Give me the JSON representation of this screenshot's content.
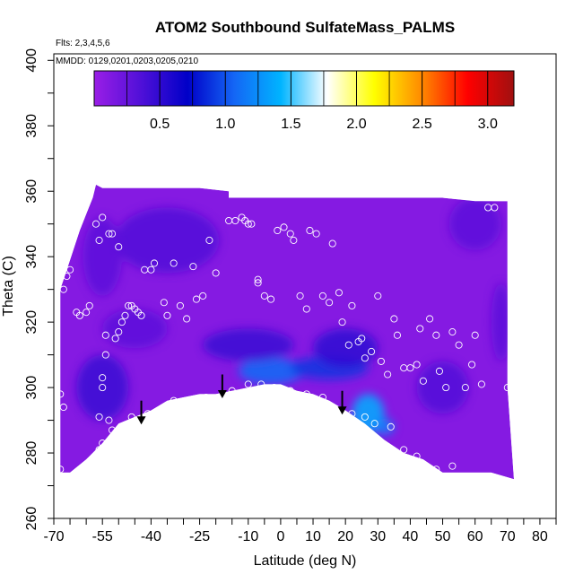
{
  "chart_data": {
    "type": "heatmap",
    "title": "ATOM2 Southbound SulfateMass_PALMS",
    "flights_note": "Flts: 2,3,4,5,6",
    "dates_note": "MMDD: 0129,0201,0203,0205,0210",
    "xlabel": "Latitude (deg N)",
    "ylabel": "Theta (C)",
    "xlim": [
      -70,
      85
    ],
    "ylim": [
      260,
      402
    ],
    "x_ticks": [
      -70,
      -55,
      -40,
      -25,
      -10,
      0,
      10,
      20,
      30,
      40,
      50,
      60,
      70,
      80
    ],
    "y_ticks": [
      260,
      280,
      300,
      320,
      340,
      360,
      380,
      400
    ],
    "colorbar": {
      "range": [
        0,
        3.2
      ],
      "ticks": [
        0.5,
        1.0,
        1.5,
        2.0,
        2.5,
        3.0
      ],
      "tick_labels": [
        "0.5",
        "1.0",
        "1.5",
        "2.0",
        "2.5",
        "3.0"
      ],
      "colors": [
        "#9a1ee6",
        "#5010d8",
        "#0000c8",
        "#1466f5",
        "#00b4ff",
        "#ffffff",
        "#ffff00",
        "#ff8c00",
        "#ff0000",
        "#a01010"
      ]
    },
    "field": {
      "upper_boundary": [
        [
          -68,
          330
        ],
        [
          -66,
          336
        ],
        [
          -64,
          342
        ],
        [
          -62,
          348
        ],
        [
          -60,
          353
        ],
        [
          -58,
          358
        ],
        [
          -57,
          362
        ],
        [
          -55,
          361
        ],
        [
          -45,
          361
        ],
        [
          -35,
          361
        ],
        [
          -25,
          361
        ],
        [
          -16,
          360
        ],
        [
          -16,
          358
        ],
        [
          0,
          358
        ],
        [
          15,
          358
        ],
        [
          30,
          358
        ],
        [
          40,
          358
        ],
        [
          50,
          358
        ],
        [
          60,
          357
        ],
        [
          70,
          357
        ],
        [
          70,
          300
        ]
      ],
      "lower_boundary": [
        [
          70,
          300
        ],
        [
          72,
          272
        ],
        [
          65,
          274
        ],
        [
          55,
          274
        ],
        [
          50,
          274
        ],
        [
          44,
          278
        ],
        [
          38,
          280
        ],
        [
          32,
          284
        ],
        [
          26,
          289
        ],
        [
          20,
          293
        ],
        [
          15,
          296
        ],
        [
          10,
          298
        ],
        [
          5,
          299
        ],
        [
          0,
          301
        ],
        [
          -5,
          301
        ],
        [
          -10,
          300
        ],
        [
          -15,
          299
        ],
        [
          -20,
          298
        ],
        [
          -25,
          298
        ],
        [
          -30,
          297
        ],
        [
          -35,
          296
        ],
        [
          -40,
          293
        ],
        [
          -45,
          291
        ],
        [
          -50,
          289
        ],
        [
          -55,
          283
        ],
        [
          -60,
          278
        ],
        [
          -65,
          274
        ],
        [
          -68,
          274
        ]
      ],
      "base_value": 0.1,
      "notes": "purple background (~0.1) with blue enhancement bands (~0.4-1.3)"
    },
    "blobs": [
      {
        "x": -3,
        "y": 305,
        "rx": 10,
        "ry": 4,
        "value": 1.1
      },
      {
        "x": 15,
        "y": 306,
        "rx": 12,
        "ry": 3.5,
        "value": 0.9
      },
      {
        "x": 27,
        "y": 292,
        "rx": 5,
        "ry": 6,
        "value": 1.4
      },
      {
        "x": 32,
        "y": 288,
        "rx": 3,
        "ry": 2.5,
        "value": 1.2
      },
      {
        "x": -10,
        "y": 313,
        "rx": 14,
        "ry": 5,
        "value": 0.45
      },
      {
        "x": 20,
        "y": 312,
        "rx": 10,
        "ry": 6,
        "value": 0.5
      },
      {
        "x": 50,
        "y": 300,
        "rx": 8,
        "ry": 8,
        "value": 0.35
      },
      {
        "x": -55,
        "y": 300,
        "rx": 8,
        "ry": 10,
        "value": 0.45
      },
      {
        "x": -45,
        "y": 318,
        "rx": 10,
        "ry": 6,
        "value": 0.3
      },
      {
        "x": -35,
        "y": 345,
        "rx": 16,
        "ry": 10,
        "value": 0.35
      },
      {
        "x": -55,
        "y": 340,
        "rx": 6,
        "ry": 12,
        "value": 0.3
      },
      {
        "x": 60,
        "y": 350,
        "rx": 8,
        "ry": 8,
        "value": 0.3
      },
      {
        "x": 68,
        "y": 320,
        "rx": 3,
        "ry": 12,
        "value": 0.3
      }
    ],
    "arrows": [
      {
        "x": -43,
        "y_start": 296,
        "y_end": 289
      },
      {
        "x": -18,
        "y_start": 304,
        "y_end": 297
      },
      {
        "x": 19,
        "y_start": 299,
        "y_end": 292
      }
    ],
    "points": [
      [
        -68,
        275
      ],
      [
        -67,
        294
      ],
      [
        -68,
        298
      ],
      [
        -67,
        330
      ],
      [
        -66,
        334
      ],
      [
        -65,
        336
      ],
      [
        -63,
        323
      ],
      [
        -62,
        322
      ],
      [
        -60,
        323
      ],
      [
        -59,
        325
      ],
      [
        -57,
        350
      ],
      [
        -56,
        345
      ],
      [
        -55,
        352
      ],
      [
        -53,
        347
      ],
      [
        -52,
        347
      ],
      [
        -50,
        343
      ],
      [
        -54,
        316
      ],
      [
        -54,
        310
      ],
      [
        -55,
        303
      ],
      [
        -55,
        300
      ],
      [
        -56,
        291
      ],
      [
        -56,
        281
      ],
      [
        -55,
        283
      ],
      [
        -53,
        290
      ],
      [
        -52,
        287
      ],
      [
        -51,
        315
      ],
      [
        -50,
        317
      ],
      [
        -49,
        320
      ],
      [
        -48,
        322
      ],
      [
        -47,
        325
      ],
      [
        -46,
        325
      ],
      [
        -45,
        324
      ],
      [
        -44,
        323
      ],
      [
        -43,
        322
      ],
      [
        -42,
        336
      ],
      [
        -40,
        336
      ],
      [
        -39,
        338
      ],
      [
        -36,
        326
      ],
      [
        -35,
        322
      ],
      [
        -33,
        338
      ],
      [
        -31,
        325
      ],
      [
        -29,
        321
      ],
      [
        -27,
        337
      ],
      [
        -26,
        327
      ],
      [
        -24,
        328
      ],
      [
        -22,
        345
      ],
      [
        -20,
        335
      ],
      [
        -16,
        351
      ],
      [
        -14,
        351
      ],
      [
        -12,
        352
      ],
      [
        -11,
        351
      ],
      [
        -10,
        350
      ],
      [
        -9,
        350
      ],
      [
        -7,
        333
      ],
      [
        -7,
        332
      ],
      [
        -5,
        328
      ],
      [
        -3,
        327
      ],
      [
        -1,
        348
      ],
      [
        1,
        349
      ],
      [
        3,
        347
      ],
      [
        4,
        345
      ],
      [
        6,
        328
      ],
      [
        8,
        324
      ],
      [
        9,
        348
      ],
      [
        11,
        347
      ],
      [
        13,
        328
      ],
      [
        15,
        326
      ],
      [
        16,
        344
      ],
      [
        18,
        329
      ],
      [
        19,
        320
      ],
      [
        21,
        313
      ],
      [
        22,
        325
      ],
      [
        24,
        314
      ],
      [
        25,
        315
      ],
      [
        26,
        309
      ],
      [
        28,
        311
      ],
      [
        30,
        328
      ],
      [
        31,
        308
      ],
      [
        33,
        304
      ],
      [
        35,
        321
      ],
      [
        36,
        316
      ],
      [
        38,
        306
      ],
      [
        40,
        306
      ],
      [
        42,
        307
      ],
      [
        43,
        318
      ],
      [
        44,
        302
      ],
      [
        46,
        321
      ],
      [
        48,
        316
      ],
      [
        49,
        305
      ],
      [
        51,
        300
      ],
      [
        53,
        317
      ],
      [
        55,
        313
      ],
      [
        57,
        300
      ],
      [
        59,
        307
      ],
      [
        60,
        316
      ],
      [
        62,
        301
      ],
      [
        64,
        355
      ],
      [
        66,
        355
      ],
      [
        70,
        300
      ],
      [
        38,
        281
      ],
      [
        42,
        279
      ],
      [
        34,
        288
      ],
      [
        29,
        289
      ],
      [
        26,
        291
      ],
      [
        22,
        292
      ],
      [
        18,
        293
      ],
      [
        13,
        297
      ],
      [
        8,
        298
      ],
      [
        3,
        299
      ],
      [
        -2,
        300
      ],
      [
        -6,
        301
      ],
      [
        -10,
        301
      ],
      [
        -15,
        299
      ],
      [
        -23,
        297
      ],
      [
        -33,
        296
      ],
      [
        -41,
        292
      ],
      [
        -46,
        291
      ],
      [
        -49,
        285
      ],
      [
        53,
        276
      ],
      [
        48,
        275
      ]
    ]
  }
}
